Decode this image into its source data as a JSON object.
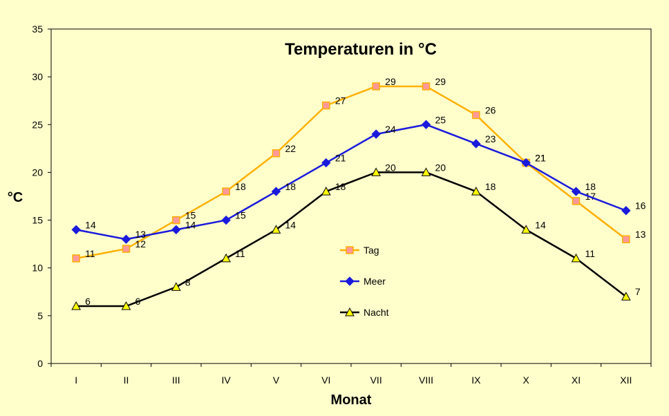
{
  "chart_data": {
    "type": "line",
    "title": "Temperaturen in °C",
    "xlabel": "Monat",
    "ylabel": "°C",
    "categories": [
      "I",
      "II",
      "III",
      "IV",
      "V",
      "VI",
      "VII",
      "VIII",
      "IX",
      "X",
      "XI",
      "XII"
    ],
    "ylim": [
      0,
      35
    ],
    "yticks": [
      0,
      5,
      10,
      15,
      20,
      25,
      30,
      35
    ],
    "grid": false,
    "legend_position": "center",
    "series": [
      {
        "name": "Tag",
        "values": [
          11,
          12,
          15,
          18,
          22,
          27,
          29,
          29,
          26,
          21,
          17,
          13
        ],
        "color": "#ffb000",
        "marker": "square",
        "marker_fill": "#ff9999"
      },
      {
        "name": "Meer",
        "values": [
          14,
          13,
          14,
          15,
          18,
          21,
          24,
          25,
          23,
          21,
          18,
          16
        ],
        "color": "#1a1adc",
        "marker": "diamond",
        "marker_fill": "#1a1adc"
      },
      {
        "name": "Nacht",
        "values": [
          6,
          6,
          8,
          11,
          14,
          18,
          20,
          20,
          18,
          14,
          11,
          7
        ],
        "color": "#000000",
        "marker": "triangle",
        "marker_fill": "#ffff00"
      }
    ]
  }
}
